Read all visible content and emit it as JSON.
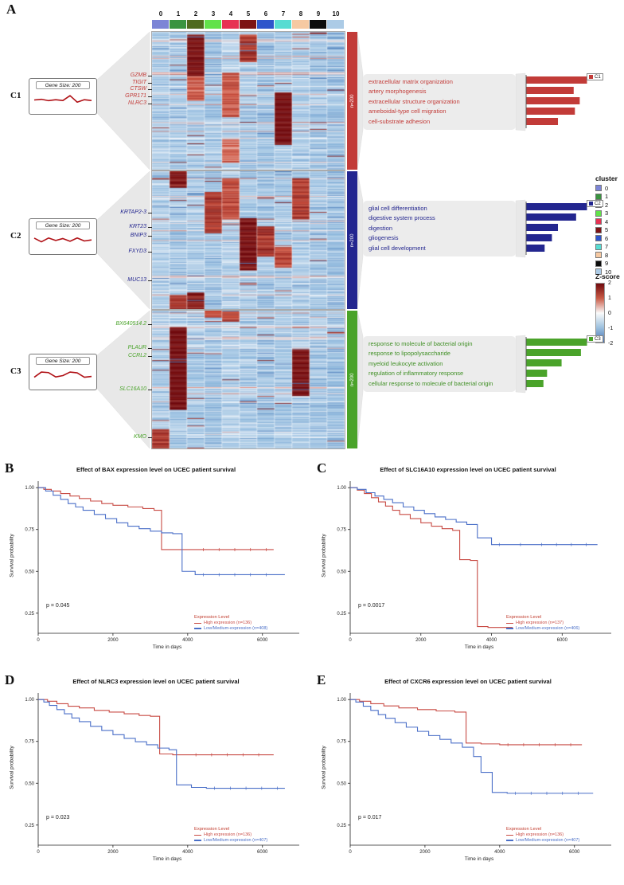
{
  "panels": {
    "A": "A",
    "B": "B",
    "C": "C",
    "D": "D",
    "E": "E"
  },
  "colors": {
    "c1": "#c23b38",
    "c2": "#23268f",
    "c3": "#4aa32a",
    "km_high": "#c84b44",
    "km_low": "#4a6fc8",
    "legend_title_red": "#c0392b",
    "heat_positive": "#70090d",
    "heat_negative": "#4672b2"
  },
  "panel_a": {
    "clusters": [
      {
        "name": "C1",
        "gene_size_label": "Gene Size: 200",
        "n_label": "n=200",
        "genes": [
          "GZMB",
          "TIGIT",
          "CTSW",
          "GPR171",
          "NLRC3"
        ],
        "go_terms": [
          "extracellular matrix organization",
          "artery morphogenesis",
          "extracellular structure organization",
          "ameboidal-type cell migration",
          "cell-substrate adhesion"
        ],
        "spark": [
          5,
          5.5,
          4.5,
          5.2,
          4.6,
          8.2,
          3.4,
          5.2,
          4.6
        ]
      },
      {
        "name": "C2",
        "gene_size_label": "Gene Size: 200",
        "n_label": "n=200",
        "genes": [
          "KRTAP2-3",
          "KRT23",
          "BNIP3",
          "FXYD3",
          "MUC13"
        ],
        "go_terms": [
          "glial cell differentiation",
          "digestive system process",
          "digestion",
          "gliogenesis",
          "glial cell development"
        ],
        "spark": [
          6.5,
          3.8,
          6.6,
          4.8,
          6.2,
          4.2,
          6.6,
          4.4,
          5.2
        ]
      },
      {
        "name": "C3",
        "gene_size_label": "Gene Size: 200",
        "n_label": "n=200",
        "genes": [
          "BX640514.2",
          "PLAUR",
          "CCRL2",
          "SLC16A10",
          "KMO"
        ],
        "go_terms": [
          "response to molecule of bacterial origin",
          "response to lipopolysaccharide",
          "myeloid leukocyte activation",
          "regulation of inflammatory response",
          "cellular response to molecule of bacterial origin"
        ],
        "spark": [
          3.8,
          7.6,
          7.2,
          4,
          5,
          7.6,
          7,
          3.8,
          4.4
        ]
      }
    ],
    "cluster_legend": {
      "title": "cluster",
      "items": [
        {
          "label": "0",
          "color": "#7c85d6"
        },
        {
          "label": "1",
          "color": "#3a9440"
        },
        {
          "label": "2",
          "color": "#4f6b1e"
        },
        {
          "label": "3",
          "color": "#61e24a"
        },
        {
          "label": "4",
          "color": "#e73253"
        },
        {
          "label": "5",
          "color": "#7d1214"
        },
        {
          "label": "6",
          "color": "#2f55cb"
        },
        {
          "label": "7",
          "color": "#57dcd2"
        },
        {
          "label": "8",
          "color": "#f6c9a2"
        },
        {
          "label": "9",
          "color": "#0c0c0c"
        },
        {
          "label": "10",
          "color": "#accbe6"
        }
      ]
    },
    "zscore_legend": {
      "title": "Z-score",
      "ticks": [
        "2",
        "1",
        "0",
        "-1",
        "-2"
      ]
    }
  },
  "km_shared": {
    "xlabel": "Time in days",
    "ylabel": "Survival probability",
    "legend_title": "Expression Level",
    "x_ticks": [
      0,
      2000,
      4000,
      6000
    ],
    "y_ticks": [
      1.0,
      0.75,
      0.5,
      0.25
    ]
  },
  "chart_data": [
    {
      "id": "expression-heatmap",
      "type": "heatmap",
      "columns": [
        "0",
        "1",
        "2",
        "3",
        "4",
        "5",
        "6",
        "7",
        "8",
        "9",
        "10"
      ],
      "col_bias": [
        0.05,
        0,
        0,
        -0.1,
        0.12,
        0,
        -0.1,
        0,
        0.05,
        -0.05,
        -0.15
      ],
      "rows_per_cluster": 200,
      "zscore_range": [
        -2,
        2
      ],
      "clusters": [
        {
          "name": "C1",
          "n_label": "n=200",
          "hot_patches": [
            {
              "col": 2,
              "r0": 0.02,
              "r1": 0.32,
              "v": 2.2
            },
            {
              "col": 2,
              "r0": 0.32,
              "r1": 0.5,
              "v": 1.0
            },
            {
              "col": 5,
              "r0": 0.02,
              "r1": 0.22,
              "v": 1.5
            },
            {
              "col": 4,
              "r0": 0.3,
              "r1": 0.62,
              "v": 1.1
            },
            {
              "col": 7,
              "r0": 0.44,
              "r1": 0.82,
              "v": 2.3
            },
            {
              "col": 4,
              "r0": 0.78,
              "r1": 0.95,
              "v": 0.9
            }
          ]
        },
        {
          "name": "C2",
          "n_label": "n=200",
          "hot_patches": [
            {
              "col": 1,
              "r0": 0.0,
              "r1": 0.12,
              "v": 2.1
            },
            {
              "col": 8,
              "r0": 0.05,
              "r1": 0.35,
              "v": 1.4
            },
            {
              "col": 3,
              "r0": 0.15,
              "r1": 0.45,
              "v": 1.5
            },
            {
              "col": 4,
              "r0": 0.05,
              "r1": 0.35,
              "v": 1.2
            },
            {
              "col": 5,
              "r0": 0.34,
              "r1": 0.72,
              "v": 2.3
            },
            {
              "col": 6,
              "r0": 0.4,
              "r1": 0.62,
              "v": 1.6
            },
            {
              "col": 7,
              "r0": 0.55,
              "r1": 0.7,
              "v": 1.2
            },
            {
              "col": 2,
              "r0": 0.88,
              "r1": 1.0,
              "v": 2.0
            },
            {
              "col": 1,
              "r0": 0.9,
              "r1": 1.0,
              "v": 1.7
            }
          ]
        },
        {
          "name": "C3",
          "n_label": "n=200",
          "hot_patches": [
            {
              "col": 1,
              "r0": 0.12,
              "r1": 0.72,
              "v": 2.4
            },
            {
              "col": 8,
              "r0": 0.28,
              "r1": 0.62,
              "v": 2.3
            },
            {
              "col": 0,
              "r0": 0.86,
              "r1": 1.0,
              "v": 1.6
            },
            {
              "col": 4,
              "r0": 0.0,
              "r1": 0.08,
              "v": 1.3
            },
            {
              "col": 3,
              "r0": 0.0,
              "r1": 0.05,
              "v": 1.1
            }
          ]
        }
      ]
    },
    {
      "id": "go-bars-c1",
      "type": "bar",
      "orientation": "horizontal",
      "label": "C1",
      "color": "#c23b38",
      "categories": [
        "extracellular matrix organization",
        "artery morphogenesis",
        "extracellular structure organization",
        "ameboidal-type cell migration",
        "cell-substrate adhesion"
      ],
      "values": [
        1.0,
        0.78,
        0.88,
        0.8,
        0.52
      ]
    },
    {
      "id": "go-bars-c2",
      "type": "bar",
      "orientation": "horizontal",
      "label": "C2",
      "color": "#23268f",
      "categories": [
        "glial cell differentiation",
        "digestive system process",
        "digestion",
        "gliogenesis",
        "glial cell development"
      ],
      "values": [
        1.0,
        0.82,
        0.52,
        0.42,
        0.3
      ]
    },
    {
      "id": "go-bars-c3",
      "type": "bar",
      "orientation": "horizontal",
      "label": "C3",
      "color": "#4aa32a",
      "categories": [
        "response to molecule of bacterial origin",
        "response to lipopolysaccharide",
        "myeloid leukocyte activation",
        "regulation of inflammatory response",
        "cellular response to molecule of bacterial origin"
      ],
      "values": [
        1.0,
        0.9,
        0.58,
        0.34,
        0.28
      ]
    },
    {
      "id": "km-bax",
      "type": "line",
      "title": "Effect of BAX expression level on UCEC patient survival",
      "p_label": "p = 0.045",
      "xlim": [
        0,
        6900
      ],
      "ylim": [
        0.13,
        1.02
      ],
      "series": [
        {
          "name": "High expression (n=136)",
          "role": "high",
          "points": [
            [
              0,
              1
            ],
            [
              150,
              0.99
            ],
            [
              350,
              0.98
            ],
            [
              600,
              0.965
            ],
            [
              850,
              0.95
            ],
            [
              1100,
              0.935
            ],
            [
              1400,
              0.92
            ],
            [
              1700,
              0.905
            ],
            [
              2000,
              0.895
            ],
            [
              2400,
              0.885
            ],
            [
              2800,
              0.875
            ],
            [
              3100,
              0.865
            ],
            [
              3300,
              0.63
            ],
            [
              3700,
              0.63
            ],
            [
              4200,
              0.63
            ],
            [
              6300,
              0.63
            ]
          ]
        },
        {
          "name": "Low/Medium-expression (n=408)",
          "role": "low",
          "points": [
            [
              0,
              1
            ],
            [
              200,
              0.98
            ],
            [
              400,
              0.955
            ],
            [
              600,
              0.93
            ],
            [
              800,
              0.905
            ],
            [
              1000,
              0.885
            ],
            [
              1200,
              0.865
            ],
            [
              1500,
              0.84
            ],
            [
              1800,
              0.815
            ],
            [
              2100,
              0.79
            ],
            [
              2400,
              0.77
            ],
            [
              2700,
              0.755
            ],
            [
              3000,
              0.74
            ],
            [
              3300,
              0.73
            ],
            [
              3600,
              0.725
            ],
            [
              3850,
              0.5
            ],
            [
              4200,
              0.48
            ],
            [
              6600,
              0.48
            ]
          ]
        }
      ]
    },
    {
      "id": "km-slc16a10",
      "type": "line",
      "title": "Effect of SLC16A10 expression level on UCEC patient survival",
      "p_label": "p = 0.0017",
      "xlim": [
        0,
        7300
      ],
      "ylim": [
        0.13,
        1.02
      ],
      "series": [
        {
          "name": "High expression (n=137)",
          "role": "high",
          "points": [
            [
              0,
              1
            ],
            [
              200,
              0.985
            ],
            [
              400,
              0.965
            ],
            [
              600,
              0.94
            ],
            [
              800,
              0.915
            ],
            [
              1000,
              0.89
            ],
            [
              1200,
              0.865
            ],
            [
              1400,
              0.84
            ],
            [
              1700,
              0.815
            ],
            [
              2000,
              0.79
            ],
            [
              2300,
              0.77
            ],
            [
              2600,
              0.755
            ],
            [
              2900,
              0.745
            ],
            [
              3100,
              0.57
            ],
            [
              3400,
              0.565
            ],
            [
              3600,
              0.17
            ],
            [
              3900,
              0.165
            ],
            [
              4300,
              0.165
            ],
            [
              4600,
              0.165
            ]
          ]
        },
        {
          "name": "Low/Medium-expression (n=406)",
          "role": "low",
          "points": [
            [
              0,
              1
            ],
            [
              200,
              0.99
            ],
            [
              450,
              0.97
            ],
            [
              700,
              0.95
            ],
            [
              950,
              0.93
            ],
            [
              1200,
              0.91
            ],
            [
              1500,
              0.885
            ],
            [
              1800,
              0.865
            ],
            [
              2100,
              0.845
            ],
            [
              2400,
              0.825
            ],
            [
              2700,
              0.81
            ],
            [
              3000,
              0.795
            ],
            [
              3300,
              0.78
            ],
            [
              3600,
              0.7
            ],
            [
              4000,
              0.66
            ],
            [
              4600,
              0.66
            ],
            [
              5200,
              0.66
            ],
            [
              7000,
              0.66
            ]
          ]
        }
      ]
    },
    {
      "id": "km-nlrc3",
      "type": "line",
      "title": "Effect of NLRC3 expression level on UCEC patient survival",
      "p_label": "p = 0.023",
      "xlim": [
        0,
        6900
      ],
      "ylim": [
        0.13,
        1.02
      ],
      "series": [
        {
          "name": "High expression (n=136)",
          "role": "high",
          "points": [
            [
              0,
              1
            ],
            [
              250,
              0.99
            ],
            [
              500,
              0.975
            ],
            [
              800,
              0.96
            ],
            [
              1100,
              0.95
            ],
            [
              1500,
              0.935
            ],
            [
              1900,
              0.925
            ],
            [
              2300,
              0.915
            ],
            [
              2700,
              0.905
            ],
            [
              3000,
              0.9
            ],
            [
              3250,
              0.675
            ],
            [
              3600,
              0.67
            ],
            [
              4000,
              0.67
            ],
            [
              6300,
              0.67
            ]
          ]
        },
        {
          "name": "Low/Medium-expression (n=407)",
          "role": "low",
          "points": [
            [
              0,
              1
            ],
            [
              150,
              0.985
            ],
            [
              300,
              0.965
            ],
            [
              500,
              0.94
            ],
            [
              700,
              0.915
            ],
            [
              900,
              0.89
            ],
            [
              1100,
              0.868
            ],
            [
              1400,
              0.84
            ],
            [
              1700,
              0.815
            ],
            [
              2000,
              0.79
            ],
            [
              2300,
              0.768
            ],
            [
              2600,
              0.748
            ],
            [
              2900,
              0.73
            ],
            [
              3200,
              0.71
            ],
            [
              3500,
              0.7
            ],
            [
              3700,
              0.49
            ],
            [
              4100,
              0.475
            ],
            [
              4500,
              0.47
            ],
            [
              6600,
              0.47
            ]
          ]
        }
      ]
    },
    {
      "id": "km-cxcr6",
      "type": "line",
      "title": "Effect of CXCR6 expression level on UCEC patient survival",
      "p_label": "p = 0.017",
      "xlim": [
        0,
        6900
      ],
      "ylim": [
        0.13,
        1.02
      ],
      "series": [
        {
          "name": "High expression (n=136)",
          "role": "high",
          "points": [
            [
              0,
              1
            ],
            [
              250,
              0.99
            ],
            [
              550,
              0.975
            ],
            [
              900,
              0.962
            ],
            [
              1300,
              0.95
            ],
            [
              1800,
              0.94
            ],
            [
              2300,
              0.932
            ],
            [
              2800,
              0.925
            ],
            [
              3100,
              0.74
            ],
            [
              3500,
              0.735
            ],
            [
              4000,
              0.73
            ],
            [
              6200,
              0.73
            ]
          ]
        },
        {
          "name": "Low/Medium-expression (n=407)",
          "role": "low",
          "points": [
            [
              0,
              1
            ],
            [
              150,
              0.985
            ],
            [
              350,
              0.96
            ],
            [
              550,
              0.935
            ],
            [
              750,
              0.91
            ],
            [
              950,
              0.888
            ],
            [
              1200,
              0.862
            ],
            [
              1500,
              0.835
            ],
            [
              1800,
              0.81
            ],
            [
              2100,
              0.785
            ],
            [
              2400,
              0.762
            ],
            [
              2700,
              0.74
            ],
            [
              3000,
              0.715
            ],
            [
              3300,
              0.66
            ],
            [
              3500,
              0.565
            ],
            [
              3800,
              0.445
            ],
            [
              4200,
              0.44
            ],
            [
              6500,
              0.44
            ]
          ]
        }
      ]
    }
  ]
}
